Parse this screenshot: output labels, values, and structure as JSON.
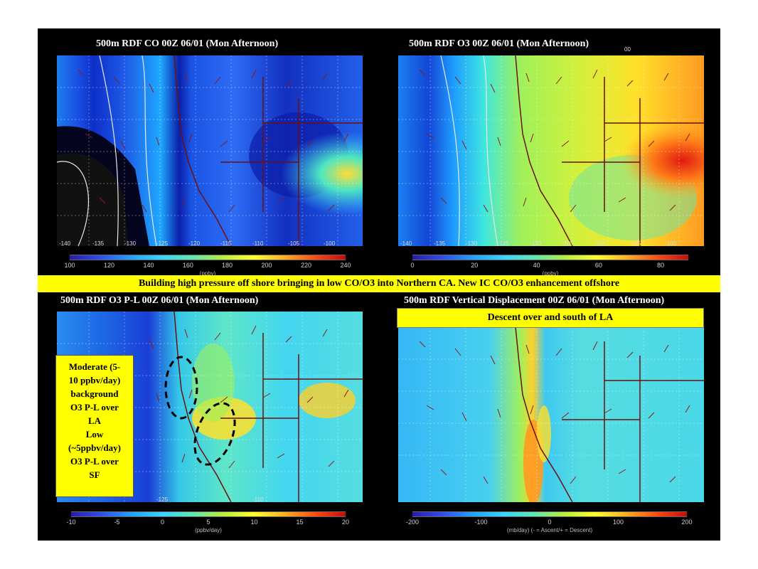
{
  "banner": "Building high pressure off shore bringing in low CO/O3 into Northern CA. New IC CO/O3 enhancement offshore",
  "panels": [
    {
      "title": "500m RDF CO  00Z 06/01 (Mon Afternoon)",
      "colorbar_ticks": [
        "100",
        "120",
        "140",
        "160",
        "180",
        "200",
        "220",
        "240"
      ],
      "colorbar_unit": "(ppbv)",
      "lon_labels": [
        "-140",
        "-135",
        "-130",
        "-125",
        "-120",
        "-115",
        "-110",
        "-105",
        "-100"
      ]
    },
    {
      "title": "500m RDF O3 00Z 06/01 (Mon Afternoon)",
      "stray_label": "00",
      "colorbar_ticks": [
        "0",
        "20",
        "40",
        "60",
        "80"
      ],
      "colorbar_unit": "(ppbv)",
      "lon_labels": [
        "-140",
        "-135",
        "-130",
        "-125",
        "-120",
        "-115",
        "-110",
        "-105",
        "-100"
      ]
    },
    {
      "title": "500m RDF O3 P-L  00Z 06/01 (Mon Afternoon)",
      "colorbar_ticks": [
        "-10",
        "-5",
        "0",
        "5",
        "10",
        "15",
        "20"
      ],
      "colorbar_unit": "(ppbv/day)",
      "lon_labels": [
        "-125",
        "-110"
      ]
    },
    {
      "title": "500m RDF Vertical Displacement 00Z 06/01 (Mon Afternoon)",
      "colorbar_ticks": [
        "-200",
        "-100",
        "0",
        "100",
        "200"
      ],
      "colorbar_unit": "(mb/day) (- = Ascent/+ = Descent)",
      "lon_labels": []
    }
  ],
  "notes": {
    "descent": "Descent  over and south of LA",
    "moderate_lines": [
      "Moderate (5-",
      "10 ppbv/day)",
      "background",
      "O3 P-L over",
      "LA",
      "Low",
      "(~5ppbv/day)",
      "O3 P-L over",
      "SF"
    ]
  },
  "colors": {
    "banner_bg": "#ffff00",
    "slide_bg": "#000000",
    "wind_arrow": "#8b1a1a",
    "coast": "#6b1010"
  }
}
